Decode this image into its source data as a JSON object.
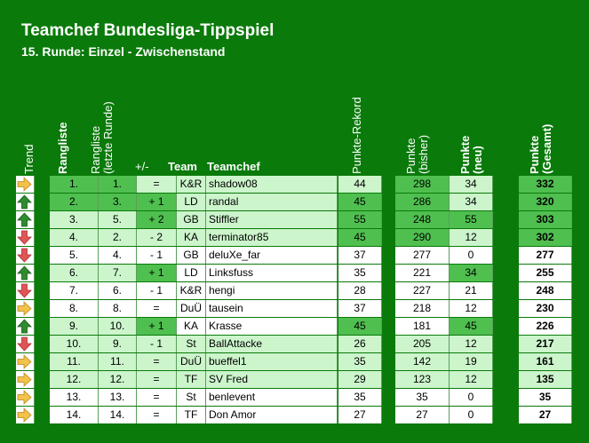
{
  "title": "Teamchef Bundesliga-Tippspiel",
  "subtitle": "15. Runde: Einzel - Zwischenstand",
  "headers": {
    "trend": "Trend",
    "rangliste": "Rangliste",
    "rangliste_prev": "Rangliste\n(letzte Runde)",
    "diff": "+/-",
    "team": "Team",
    "teamchef": "Teamchef",
    "rekord": "Punkte-Rekord",
    "bisher": "Punkte\n(bisher)",
    "neu": "Punkte\n(neu)",
    "gesamt": "Punkte\n(Gesamt)"
  },
  "colors": {
    "background": "#0a7a0a",
    "light_green": "#ccf5cc",
    "mid_green": "#4fbf4f",
    "dark_green": "#1f9a3a",
    "arrow_up": "#2e8b2e",
    "arrow_down": "#e05555",
    "arrow_side": "#f2c24a"
  },
  "rows": [
    {
      "trend": "side",
      "rank": "1.",
      "prev": "1.",
      "diff": "=",
      "team": "K&R",
      "chef": "shadow08",
      "rekord": "44",
      "bisher": "298",
      "neu": "34",
      "gesamt": "332"
    },
    {
      "trend": "up",
      "rank": "2.",
      "prev": "3.",
      "diff": "+ 1",
      "team": "LD",
      "chef": "randal",
      "rekord": "45",
      "bisher": "286",
      "neu": "34",
      "gesamt": "320"
    },
    {
      "trend": "up",
      "rank": "3.",
      "prev": "5.",
      "diff": "+ 2",
      "team": "GB",
      "chef": "Stiffler",
      "rekord": "55",
      "bisher": "248",
      "neu": "55",
      "gesamt": "303"
    },
    {
      "trend": "down",
      "rank": "4.",
      "prev": "2.",
      "diff": "- 2",
      "team": "KA",
      "chef": "terminator85",
      "rekord": "45",
      "bisher": "290",
      "neu": "12",
      "gesamt": "302"
    },
    {
      "trend": "down",
      "rank": "5.",
      "prev": "4.",
      "diff": "- 1",
      "team": "GB",
      "chef": "deluXe_far",
      "rekord": "37",
      "bisher": "277",
      "neu": "0",
      "gesamt": "277"
    },
    {
      "trend": "up",
      "rank": "6.",
      "prev": "7.",
      "diff": "+ 1",
      "team": "LD",
      "chef": "Linksfuss",
      "rekord": "35",
      "bisher": "221",
      "neu": "34",
      "gesamt": "255"
    },
    {
      "trend": "down",
      "rank": "7.",
      "prev": "6.",
      "diff": "- 1",
      "team": "K&R",
      "chef": "hengi",
      "rekord": "28",
      "bisher": "227",
      "neu": "21",
      "gesamt": "248"
    },
    {
      "trend": "side",
      "rank": "8.",
      "prev": "8.",
      "diff": "=",
      "team": "DuÜ",
      "chef": "tausein",
      "rekord": "37",
      "bisher": "218",
      "neu": "12",
      "gesamt": "230"
    },
    {
      "trend": "up",
      "rank": "9.",
      "prev": "10.",
      "diff": "+ 1",
      "team": "KA",
      "chef": "Krasse",
      "rekord": "45",
      "bisher": "181",
      "neu": "45",
      "gesamt": "226"
    },
    {
      "trend": "down",
      "rank": "10.",
      "prev": "9.",
      "diff": "- 1",
      "team": "St",
      "chef": "BallAttacke",
      "rekord": "26",
      "bisher": "205",
      "neu": "12",
      "gesamt": "217"
    },
    {
      "trend": "side",
      "rank": "11.",
      "prev": "11.",
      "diff": "=",
      "team": "DuÜ",
      "chef": "bueffel1",
      "rekord": "35",
      "bisher": "142",
      "neu": "19",
      "gesamt": "161"
    },
    {
      "trend": "side",
      "rank": "12.",
      "prev": "12.",
      "diff": "=",
      "team": "TF",
      "chef": "SV Fred",
      "rekord": "29",
      "bisher": "123",
      "neu": "12",
      "gesamt": "135"
    },
    {
      "trend": "side",
      "rank": "13.",
      "prev": "13.",
      "diff": "=",
      "team": "St",
      "chef": "benlevent",
      "rekord": "35",
      "bisher": "35",
      "neu": "0",
      "gesamt": "35"
    },
    {
      "trend": "side",
      "rank": "14.",
      "prev": "14.",
      "diff": "=",
      "team": "TF",
      "chef": "Don Amor",
      "rekord": "27",
      "bisher": "27",
      "neu": "0",
      "gesamt": "27"
    }
  ]
}
